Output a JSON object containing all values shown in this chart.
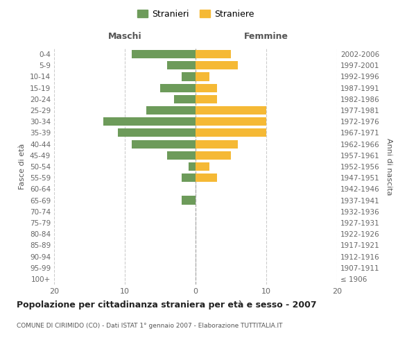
{
  "age_groups": [
    "100+",
    "95-99",
    "90-94",
    "85-89",
    "80-84",
    "75-79",
    "70-74",
    "65-69",
    "60-64",
    "55-59",
    "50-54",
    "45-49",
    "40-44",
    "35-39",
    "30-34",
    "25-29",
    "20-24",
    "15-19",
    "10-14",
    "5-9",
    "0-4"
  ],
  "birth_years": [
    "≤ 1906",
    "1907-1911",
    "1912-1916",
    "1917-1921",
    "1922-1926",
    "1927-1931",
    "1932-1936",
    "1937-1941",
    "1942-1946",
    "1947-1951",
    "1952-1956",
    "1957-1961",
    "1962-1966",
    "1967-1971",
    "1972-1976",
    "1977-1981",
    "1982-1986",
    "1987-1991",
    "1992-1996",
    "1997-2001",
    "2002-2006"
  ],
  "maschi": [
    0,
    0,
    0,
    0,
    0,
    0,
    0,
    2,
    0,
    2,
    1,
    4,
    9,
    11,
    13,
    7,
    3,
    5,
    2,
    4,
    9
  ],
  "femmine": [
    0,
    0,
    0,
    0,
    0,
    0,
    0,
    0,
    0,
    3,
    2,
    5,
    6,
    10,
    10,
    10,
    3,
    3,
    2,
    6,
    5
  ],
  "color_maschi": "#6d9b5a",
  "color_femmine": "#f5b935",
  "title": "Popolazione per cittadinanza straniera per età e sesso - 2007",
  "subtitle": "COMUNE DI CIRIMIDO (CO) - Dati ISTAT 1° gennaio 2007 - Elaborazione TUTTITALIA.IT",
  "xlabel_left": "Maschi",
  "xlabel_right": "Femmine",
  "ylabel_left": "Fasce di età",
  "ylabel_right": "Anni di nascita",
  "legend_maschi": "Stranieri",
  "legend_femmine": "Straniere",
  "xlim": 20,
  "background_color": "#ffffff",
  "grid_color": "#cccccc"
}
